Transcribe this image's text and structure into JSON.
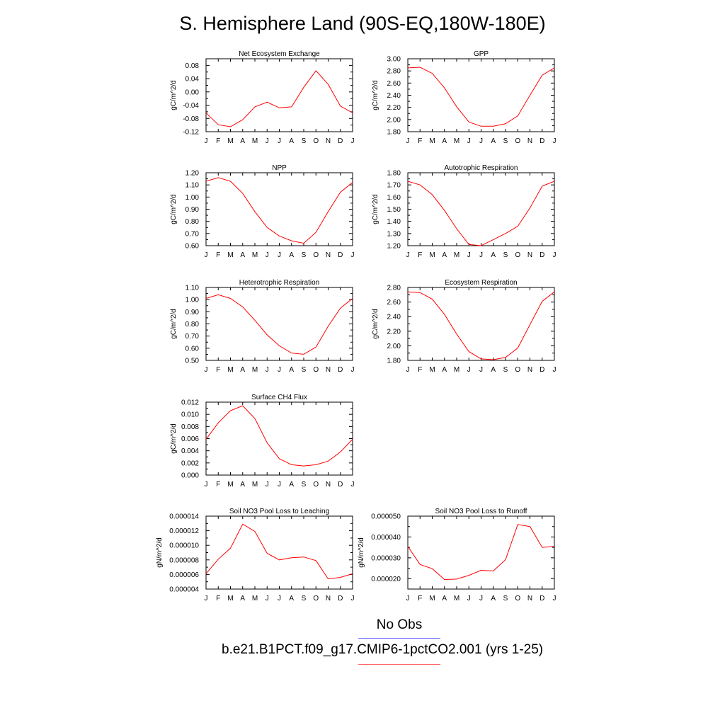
{
  "title": "S. Hemisphere Land (90S-EQ,180W-180E)",
  "colors": {
    "model": "#ff0000",
    "obs": "#6a6aff",
    "case_underline": "#ff6a6a"
  },
  "legend": {
    "obs_label": "No Obs",
    "case_label": "b.e21.B1PCT.f09_g17.CMIP6-1pctCO2.001 (yrs 1-25)"
  },
  "chart_data": [
    {
      "type": "line",
      "title": "Net Ecosystem Exchange",
      "xlabel": "",
      "ylabel": "gC/m^2/d",
      "categories": [
        "J",
        "F",
        "M",
        "A",
        "M",
        "J",
        "J",
        "A",
        "S",
        "O",
        "N",
        "D",
        "J"
      ],
      "ylim": [
        -0.12,
        0.1
      ],
      "yticks": [
        "0.08",
        "0.04",
        "0.00",
        "-0.04",
        "-0.08",
        "-0.12"
      ],
      "series": [
        {
          "values": [
            -0.063,
            -0.099,
            -0.105,
            -0.084,
            -0.045,
            -0.031,
            -0.048,
            -0.045,
            0.014,
            0.064,
            0.023,
            -0.043,
            -0.063
          ]
        }
      ]
    },
    {
      "type": "line",
      "title": "GPP",
      "xlabel": "",
      "ylabel": "gC/m^2/d",
      "categories": [
        "J",
        "F",
        "M",
        "A",
        "M",
        "J",
        "J",
        "A",
        "S",
        "O",
        "N",
        "D",
        "J"
      ],
      "ylim": [
        1.8,
        3.0
      ],
      "yticks": [
        "3.00",
        "2.80",
        "2.60",
        "2.40",
        "2.20",
        "2.00",
        "1.80"
      ],
      "series": [
        {
          "values": [
            2.85,
            2.86,
            2.76,
            2.52,
            2.21,
            1.96,
            1.89,
            1.89,
            1.93,
            2.06,
            2.4,
            2.73,
            2.85
          ]
        }
      ]
    },
    {
      "type": "line",
      "title": "NPP",
      "xlabel": "",
      "ylabel": "gC/m^2/d",
      "categories": [
        "J",
        "F",
        "M",
        "A",
        "M",
        "J",
        "J",
        "A",
        "S",
        "O",
        "N",
        "D",
        "J"
      ],
      "ylim": [
        0.6,
        1.2
      ],
      "yticks": [
        "1.20",
        "1.10",
        "1.00",
        "0.90",
        "0.80",
        "0.70",
        "0.60"
      ],
      "series": [
        {
          "values": [
            1.13,
            1.16,
            1.13,
            1.03,
            0.88,
            0.75,
            0.68,
            0.64,
            0.62,
            0.71,
            0.88,
            1.04,
            1.12
          ]
        }
      ]
    },
    {
      "type": "line",
      "title": "Autotrophic Respiration",
      "xlabel": "",
      "ylabel": "gC/m^2/d",
      "categories": [
        "J",
        "F",
        "M",
        "A",
        "M",
        "J",
        "J",
        "A",
        "S",
        "O",
        "N",
        "D",
        "J"
      ],
      "ylim": [
        1.2,
        1.8
      ],
      "yticks": [
        "1.80",
        "1.70",
        "1.60",
        "1.50",
        "1.40",
        "1.30",
        "1.20"
      ],
      "series": [
        {
          "values": [
            1.73,
            1.7,
            1.62,
            1.49,
            1.34,
            1.21,
            1.2,
            1.25,
            1.3,
            1.36,
            1.51,
            1.69,
            1.73
          ]
        }
      ]
    },
    {
      "type": "line",
      "title": "Heterotrophic Respiration",
      "xlabel": "",
      "ylabel": "gC/m^2/d",
      "categories": [
        "J",
        "F",
        "M",
        "A",
        "M",
        "J",
        "J",
        "A",
        "S",
        "O",
        "N",
        "D",
        "J"
      ],
      "ylim": [
        0.5,
        1.1
      ],
      "yticks": [
        "1.10",
        "1.00",
        "0.90",
        "0.80",
        "0.70",
        "0.60",
        "0.50"
      ],
      "series": [
        {
          "values": [
            1.01,
            1.04,
            1.01,
            0.94,
            0.83,
            0.71,
            0.62,
            0.56,
            0.55,
            0.61,
            0.78,
            0.93,
            1.01
          ]
        }
      ]
    },
    {
      "type": "line",
      "title": "Ecosystem Respiration",
      "xlabel": "",
      "ylabel": "gC/m^2/d",
      "categories": [
        "J",
        "F",
        "M",
        "A",
        "M",
        "J",
        "J",
        "A",
        "S",
        "O",
        "N",
        "D",
        "J"
      ],
      "ylim": [
        1.8,
        2.8
      ],
      "yticks": [
        "2.80",
        "2.60",
        "2.40",
        "2.20",
        "2.00",
        "1.80"
      ],
      "series": [
        {
          "values": [
            2.74,
            2.73,
            2.64,
            2.43,
            2.16,
            1.92,
            1.82,
            1.81,
            1.84,
            1.97,
            2.29,
            2.61,
            2.74
          ]
        }
      ]
    },
    {
      "type": "line",
      "title": "Surface CH4 Flux",
      "xlabel": "",
      "ylabel": "gC/m^2/d",
      "categories": [
        "J",
        "F",
        "M",
        "A",
        "M",
        "J",
        "J",
        "A",
        "S",
        "O",
        "N",
        "D",
        "J"
      ],
      "ylim": [
        0.0,
        0.012
      ],
      "yticks": [
        "0.012",
        "0.010",
        "0.008",
        "0.006",
        "0.004",
        "0.002",
        "0.000"
      ],
      "series": [
        {
          "values": [
            0.0059,
            0.0086,
            0.0106,
            0.0114,
            0.0093,
            0.0053,
            0.0027,
            0.0017,
            0.0015,
            0.0017,
            0.0023,
            0.0038,
            0.0059
          ]
        }
      ]
    },
    {
      "type": "line",
      "title": "Soil NO3 Pool Loss to Leaching",
      "xlabel": "",
      "ylabel": "gN/m^2/d",
      "categories": [
        "J",
        "F",
        "M",
        "A",
        "M",
        "J",
        "J",
        "A",
        "S",
        "O",
        "N",
        "D",
        "J"
      ],
      "ylim": [
        4e-06,
        1.4e-05
      ],
      "yticks": [
        "0.000014",
        "0.000012",
        "0.000010",
        "0.000008",
        "0.000006",
        "0.000004"
      ],
      "series": [
        {
          "values": [
            6.1e-06,
            8.1e-06,
            9.6e-06,
            1.29e-05,
            1.19e-05,
            8.9e-06,
            8e-06,
            8.3e-06,
            8.4e-06,
            7.9e-06,
            5.4e-06,
            5.6e-06,
            6.1e-06
          ]
        }
      ]
    },
    {
      "type": "line",
      "title": "Soil NO3 Pool Loss to Runoff",
      "xlabel": "",
      "ylabel": "gN/m^2/d",
      "categories": [
        "J",
        "F",
        "M",
        "A",
        "M",
        "J",
        "J",
        "A",
        "S",
        "O",
        "N",
        "D",
        "J"
      ],
      "ylim": [
        1.5e-05,
        5e-05
      ],
      "yticks": [
        "0.000050",
        "0.000040",
        "0.000030",
        "0.000020"
      ],
      "series": [
        {
          "values": [
            3.55e-05,
            2.68e-05,
            2.48e-05,
            1.96e-05,
            1.98e-05,
            2.16e-05,
            2.4e-05,
            2.37e-05,
            2.91e-05,
            4.6e-05,
            4.5e-05,
            3.5e-05,
            3.55e-05
          ]
        }
      ]
    }
  ]
}
